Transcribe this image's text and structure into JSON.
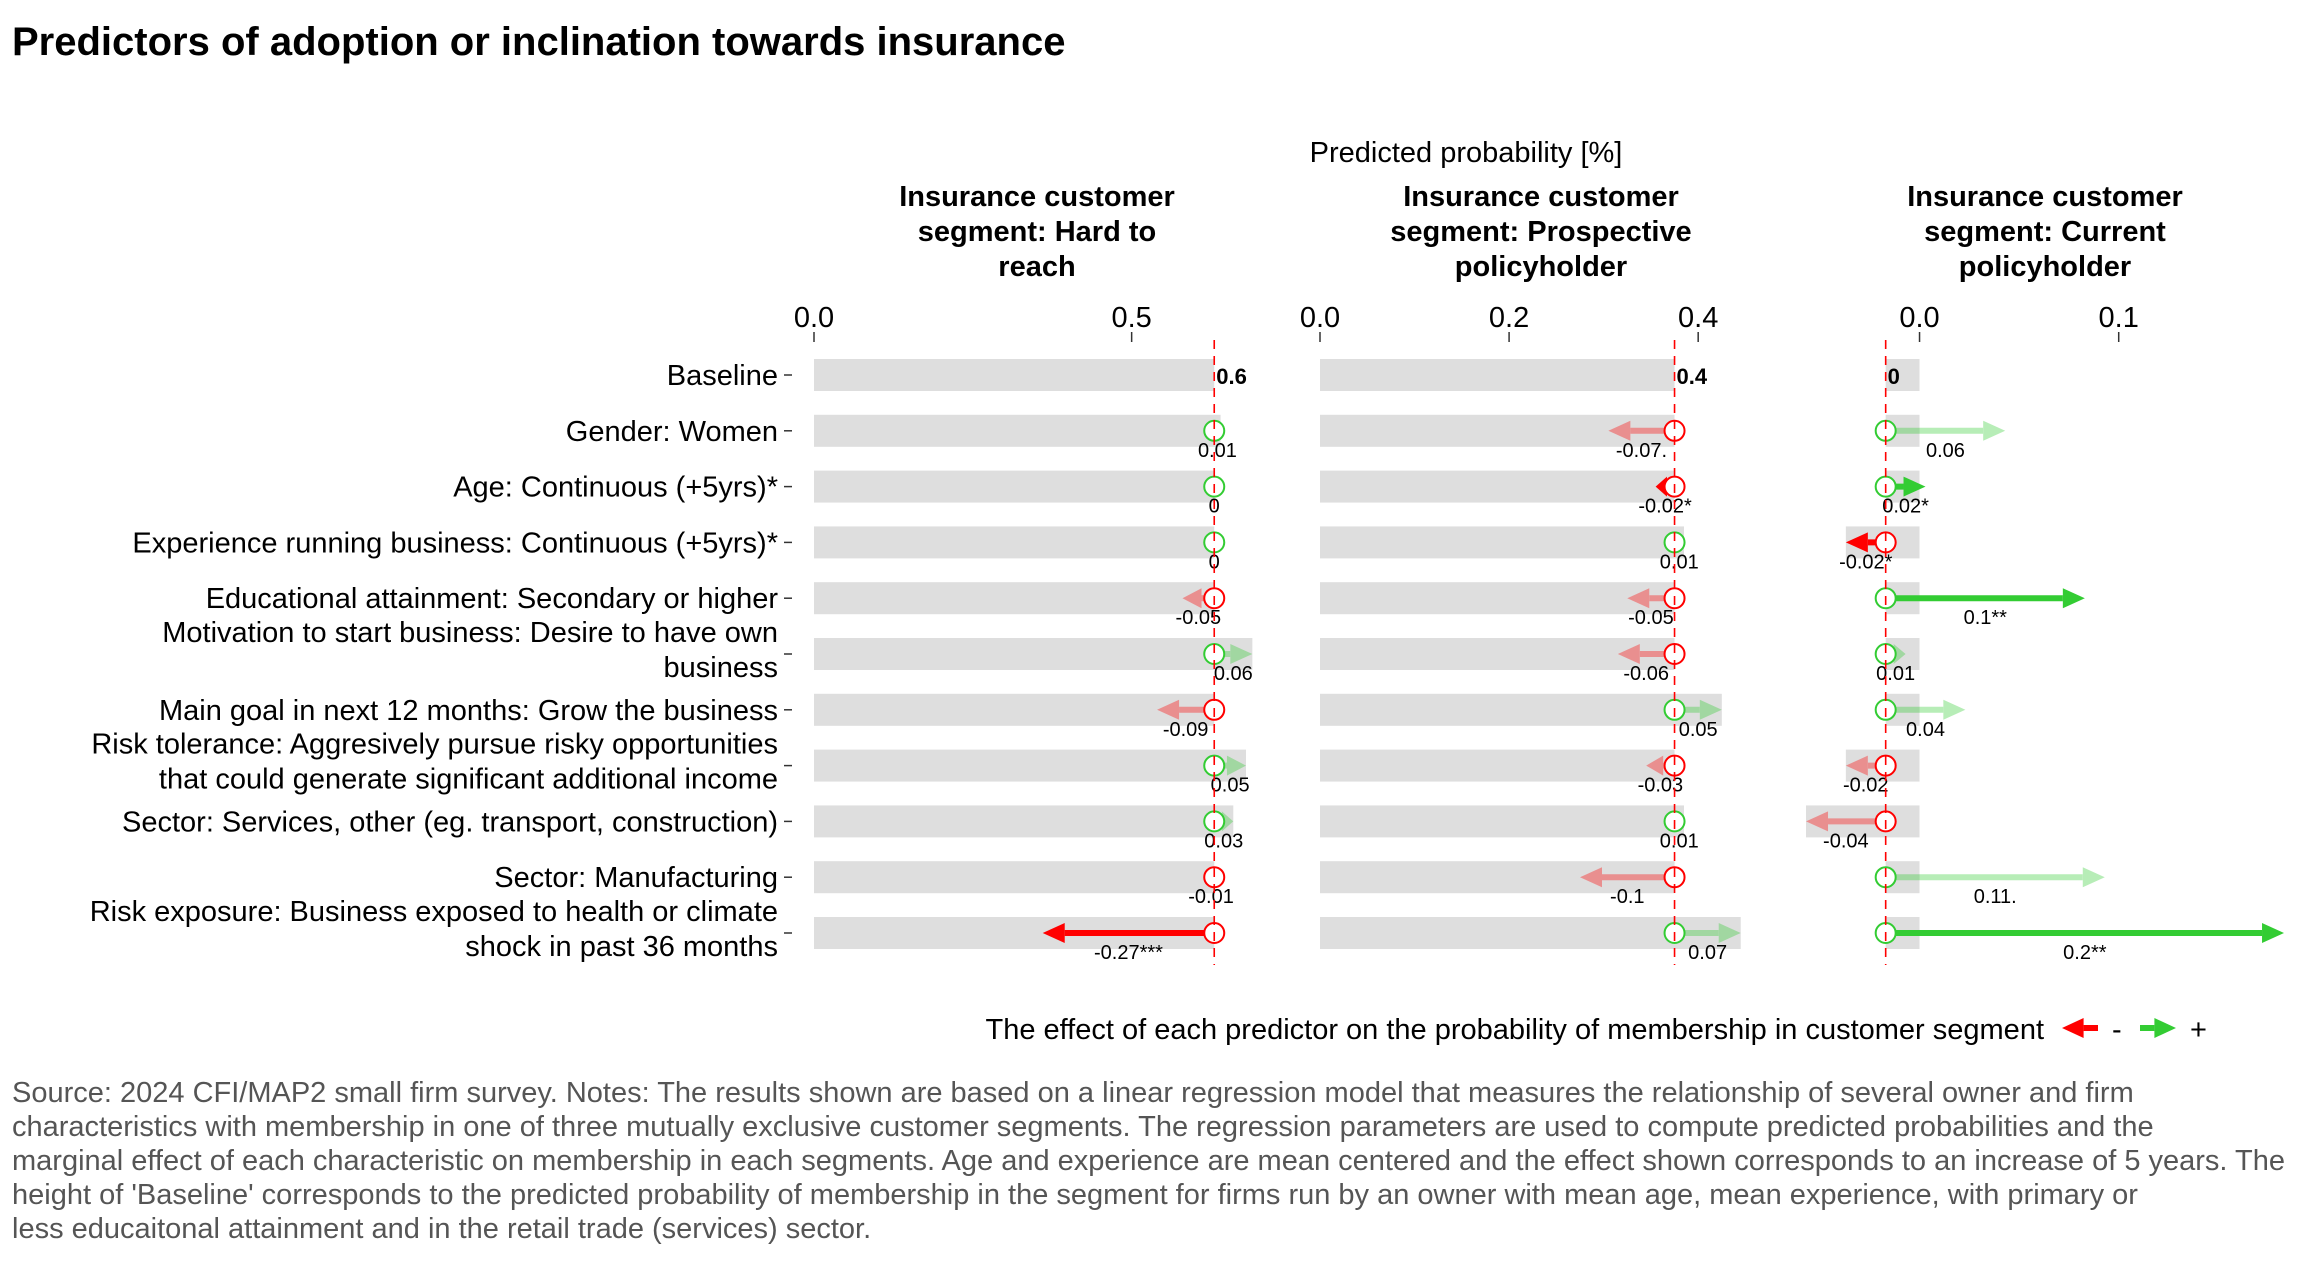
{
  "title": "Predictors of adoption or inclination towards insurance",
  "top_axis_title": "Predicted probability [%]",
  "legend": {
    "text": "The effect of each predictor on the probability of membership in customer segment",
    "neg_label": "-",
    "pos_label": "+",
    "neg_color": "#ff0000",
    "pos_color": "#33cc33"
  },
  "notes": [
    "Source: 2024 CFI/MAP2 small firm survey. Notes: The results shown are based on a linear regression model that measures the relationship of several owner and firm",
    "characteristics with membership in one of three mutually exclusive customer segments. The regression parameters are used to compute predicted probabilities and the",
    "marginal effect of each characteristic on membership in each segments. Age and experience are mean centered and the effect shown corresponds to an increase of 5 years. The",
    "height of 'Baseline' corresponds to the predicted probability of membership in the segment for firms run by an owner with mean age, mean experience, with primary or",
    "less educaitonal attainment and in the retail trade (services) sector."
  ],
  "chart_data": {
    "type": "bar",
    "categories": [
      [
        "Baseline"
      ],
      [
        "Gender: Women"
      ],
      [
        "Age: Continuous (+5yrs)*"
      ],
      [
        "Experience running business: Continuous (+5yrs)*"
      ],
      [
        "Educational attainment: Secondary or higher"
      ],
      [
        "Motivation to start business: Desire to have own",
        "business"
      ],
      [
        "Main goal in next 12 months: Grow the business"
      ],
      [
        "Risk tolerance: Aggresively pursue risky opportunities",
        "that could generate significant additional income"
      ],
      [
        "Sector: Services, other (eg. transport, construction)"
      ],
      [
        "Sector: Manufacturing"
      ],
      [
        "Risk exposure: Business exposed to health or climate",
        "shock in past 36 months"
      ]
    ],
    "panels": [
      {
        "title": [
          "Insurance customer",
          "segment: Hard to",
          "reach"
        ],
        "xlim": [
          0,
          0.68
        ],
        "ticks": [
          0.0,
          0.5
        ],
        "tick_labels": [
          "0.0",
          "0.5"
        ],
        "baseline": 0.63,
        "baseline_label": "0.6",
        "effects": [
          0.01,
          0.0,
          0.0,
          -0.05,
          0.06,
          -0.09,
          0.05,
          0.03,
          -0.01,
          -0.27
        ],
        "labels": [
          "0.01",
          "0",
          "0",
          "-0.05",
          "0.06",
          "-0.09",
          "0.05",
          "0.03",
          "-0.01",
          "-0.27***"
        ],
        "significant": [
          false,
          true,
          true,
          false,
          false,
          false,
          false,
          false,
          false,
          true
        ]
      },
      {
        "title": [
          "Insurance customer",
          "segment: Prospective",
          "policyholder"
        ],
        "xlim": [
          0,
          0.44
        ],
        "ticks": [
          0.0,
          0.2,
          0.4
        ],
        "tick_labels": [
          "0.0",
          "0.2",
          "0.4"
        ],
        "baseline": 0.375,
        "baseline_label": "0.4",
        "effects": [
          -0.07,
          -0.02,
          0.01,
          -0.05,
          -0.06,
          0.05,
          -0.03,
          0.01,
          -0.1,
          0.07
        ],
        "labels": [
          "-0.07.",
          "-0.02*",
          "0.01",
          "-0.05",
          "-0.06",
          "0.05",
          "-0.03",
          "0.01",
          "-0.1",
          "0.07"
        ],
        "significant": [
          false,
          true,
          false,
          false,
          false,
          false,
          false,
          false,
          false,
          false
        ]
      },
      {
        "title": [
          "Insurance customer",
          "segment: Current",
          "policyholder"
        ],
        "xlim": [
          -0.055,
          0.185
        ],
        "ticks": [
          0.0,
          0.1
        ],
        "tick_labels": [
          "0.0",
          "0.1"
        ],
        "baseline": -0.017,
        "baseline_label": "0",
        "effects": [
          0.06,
          0.02,
          -0.02,
          0.1,
          0.01,
          0.04,
          -0.02,
          -0.04,
          0.11,
          0.2
        ],
        "labels": [
          "0.06",
          "0.02*",
          "-0.02*",
          "0.1**",
          "0.01",
          "0.04",
          "-0.02",
          "-0.04",
          "0.11.",
          "0.2**"
        ],
        "significant": [
          false,
          true,
          true,
          true,
          false,
          false,
          false,
          false,
          false,
          true
        ]
      }
    ]
  }
}
